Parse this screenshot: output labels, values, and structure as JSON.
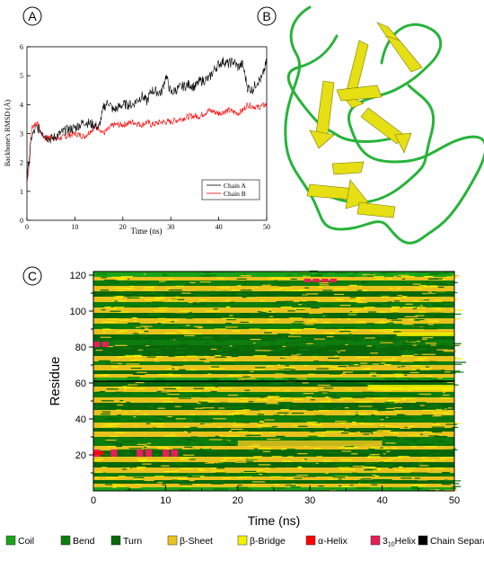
{
  "panels": {
    "a": {
      "letter": "A"
    },
    "b": {
      "letter": "B"
    },
    "c": {
      "letter": "C"
    }
  },
  "colors": {
    "chain_a": "#000000",
    "chain_b": "#ff0000",
    "coil": "#1aa31a",
    "bend": "#0d7d0d",
    "turn": "#0a660a",
    "sheet": "#e8c21d",
    "bridge": "#f4f000",
    "alpha": "#ff0000",
    "helix310": "#e81d5a",
    "separator": "#000000",
    "ribbon_green": "#27b33a",
    "ribbon_yellow": "#e6df14"
  },
  "chart_data": [
    {
      "type": "line",
      "panel": "A",
      "xlabel": "Time (ns)",
      "ylabel": "Backbone's RMSD (Å)",
      "xlim": [
        0,
        50
      ],
      "ylim": [
        0,
        6
      ],
      "xticks": [
        0,
        10,
        20,
        30,
        40,
        50
      ],
      "yticks": [
        0,
        1,
        2,
        3,
        4,
        5,
        6
      ],
      "legend_position": "bottom-right",
      "series": [
        {
          "name": "Chain A",
          "color": "#000000",
          "x": [
            0,
            0.5,
            1,
            2,
            3,
            4,
            5,
            6,
            8,
            10,
            12,
            14,
            15,
            16,
            17,
            18,
            20,
            22,
            24,
            25,
            26,
            28,
            29,
            30,
            32,
            34,
            35,
            36,
            38,
            39,
            40,
            41,
            42,
            43,
            44,
            45,
            46,
            47,
            48,
            49,
            50
          ],
          "y": [
            1.4,
            2.2,
            2.9,
            3.2,
            3.1,
            2.9,
            2.8,
            2.9,
            3.1,
            3.2,
            3.4,
            3.3,
            3.2,
            3.9,
            4.1,
            3.8,
            4.0,
            4.0,
            4.3,
            4.1,
            4.5,
            4.4,
            5.0,
            4.4,
            4.6,
            4.7,
            4.6,
            4.8,
            4.9,
            5.2,
            5.4,
            5.5,
            5.4,
            5.5,
            5.3,
            5.4,
            4.6,
            4.5,
            4.8,
            4.9,
            5.5
          ]
        },
        {
          "name": "Chain B",
          "color": "#ff0000",
          "x": [
            0,
            0.5,
            1,
            2,
            3,
            4,
            5,
            6,
            8,
            10,
            12,
            14,
            15,
            16,
            18,
            20,
            22,
            24,
            25,
            26,
            28,
            30,
            32,
            34,
            36,
            38,
            40,
            42,
            44,
            45,
            46,
            48,
            50
          ],
          "y": [
            1.3,
            2.0,
            3.2,
            3.4,
            3.0,
            2.8,
            2.9,
            2.8,
            2.9,
            3.0,
            2.9,
            3.2,
            3.2,
            3.0,
            3.3,
            3.3,
            3.4,
            3.3,
            3.4,
            3.3,
            3.4,
            3.4,
            3.5,
            3.6,
            3.6,
            3.8,
            3.7,
            3.8,
            3.7,
            3.8,
            4.0,
            3.9,
            4.0
          ]
        }
      ]
    },
    {
      "type": "heatmap",
      "panel": "C",
      "xlabel": "Time (ns)",
      "ylabel": "Residue",
      "xlim": [
        0,
        50
      ],
      "ylim": [
        0,
        122
      ],
      "xticks": [
        0,
        10,
        20,
        30,
        40,
        50
      ],
      "yticks": [
        20,
        40,
        60,
        80,
        100,
        120
      ],
      "chain_separator_residue": 61,
      "legend_position": "bottom",
      "legend": [
        {
          "key": "coil",
          "label": "Coil",
          "color": "#1aa31a"
        },
        {
          "key": "bend",
          "label": "Bend",
          "color": "#0d7d0d"
        },
        {
          "key": "turn",
          "label": "Turn",
          "color": "#0a660a"
        },
        {
          "key": "sheet",
          "label": "β-Sheet",
          "color": "#e8c21d"
        },
        {
          "key": "bridge",
          "label": "β-Bridge",
          "color": "#f4f000"
        },
        {
          "key": "alpha",
          "label": "α-Helix",
          "color": "#ff0000"
        },
        {
          "key": "h310",
          "label": "3",
          "sub": "10",
          "after": "Helix",
          "color": "#e81d5a"
        },
        {
          "key": "sep",
          "label": "Chain Separator",
          "color": "#000000"
        }
      ],
      "bands": [
        {
          "from": 0,
          "to": 2,
          "state": "coil"
        },
        {
          "from": 2,
          "to": 4,
          "state": "sheet"
        },
        {
          "from": 4,
          "to": 6,
          "state": "turn"
        },
        {
          "from": 6,
          "to": 8,
          "state": "sheet"
        },
        {
          "from": 8,
          "to": 10,
          "state": "bend"
        },
        {
          "from": 10,
          "to": 13,
          "state": "sheet"
        },
        {
          "from": 13,
          "to": 16,
          "state": "turn"
        },
        {
          "from": 16,
          "to": 19,
          "state": "sheet"
        },
        {
          "from": 19,
          "to": 23,
          "state": "turn"
        },
        {
          "from": 23,
          "to": 25,
          "state": "sheet"
        },
        {
          "from": 25,
          "to": 30,
          "state": "bend"
        },
        {
          "from": 30,
          "to": 33,
          "state": "sheet"
        },
        {
          "from": 33,
          "to": 35,
          "state": "turn"
        },
        {
          "from": 35,
          "to": 38,
          "state": "sheet"
        },
        {
          "from": 38,
          "to": 42,
          "state": "bend"
        },
        {
          "from": 42,
          "to": 45,
          "state": "sheet"
        },
        {
          "from": 45,
          "to": 49,
          "state": "turn"
        },
        {
          "from": 49,
          "to": 52,
          "state": "sheet"
        },
        {
          "from": 52,
          "to": 55,
          "state": "bend"
        },
        {
          "from": 55,
          "to": 58,
          "state": "sheet"
        },
        {
          "from": 58,
          "to": 61,
          "state": "turn"
        },
        {
          "from": 61,
          "to": 63,
          "state": "coil"
        },
        {
          "from": 63,
          "to": 65,
          "state": "sheet"
        },
        {
          "from": 65,
          "to": 67,
          "state": "turn"
        },
        {
          "from": 67,
          "to": 70,
          "state": "sheet"
        },
        {
          "from": 70,
          "to": 72,
          "state": "bend"
        },
        {
          "from": 72,
          "to": 75,
          "state": "sheet"
        },
        {
          "from": 75,
          "to": 81,
          "state": "turn"
        },
        {
          "from": 81,
          "to": 84,
          "state": "bend"
        },
        {
          "from": 84,
          "to": 87,
          "state": "turn"
        },
        {
          "from": 87,
          "to": 90,
          "state": "sheet"
        },
        {
          "from": 90,
          "to": 93,
          "state": "bend"
        },
        {
          "from": 93,
          "to": 96,
          "state": "sheet"
        },
        {
          "from": 96,
          "to": 99,
          "state": "turn"
        },
        {
          "from": 99,
          "to": 102,
          "state": "sheet"
        },
        {
          "from": 102,
          "to": 105,
          "state": "bend"
        },
        {
          "from": 105,
          "to": 108,
          "state": "sheet"
        },
        {
          "from": 108,
          "to": 111,
          "state": "turn"
        },
        {
          "from": 111,
          "to": 114,
          "state": "sheet"
        },
        {
          "from": 114,
          "to": 117,
          "state": "bend"
        },
        {
          "from": 117,
          "to": 119,
          "state": "sheet"
        },
        {
          "from": 119,
          "to": 122,
          "state": "coil"
        }
      ],
      "events": [
        {
          "t0": 0,
          "t1": 12,
          "r0": 19,
          "r1": 23,
          "state": "h310"
        },
        {
          "t0": 0,
          "t1": 1.5,
          "r0": 80,
          "r1": 83,
          "state": "h310"
        },
        {
          "t0": 0,
          "t1": 1.5,
          "r0": 20,
          "r1": 22,
          "state": "alpha"
        },
        {
          "t0": 20,
          "t1": 40,
          "r0": 25,
          "r1": 28,
          "state": "sheet"
        },
        {
          "t0": 38,
          "t1": 50,
          "r0": 56,
          "r1": 59,
          "state": "bridge"
        },
        {
          "t0": 42,
          "t1": 50,
          "r0": 86,
          "r1": 88,
          "state": "bridge"
        },
        {
          "t0": 28,
          "t1": 34,
          "r0": 116,
          "r1": 118,
          "state": "h310"
        }
      ]
    }
  ]
}
